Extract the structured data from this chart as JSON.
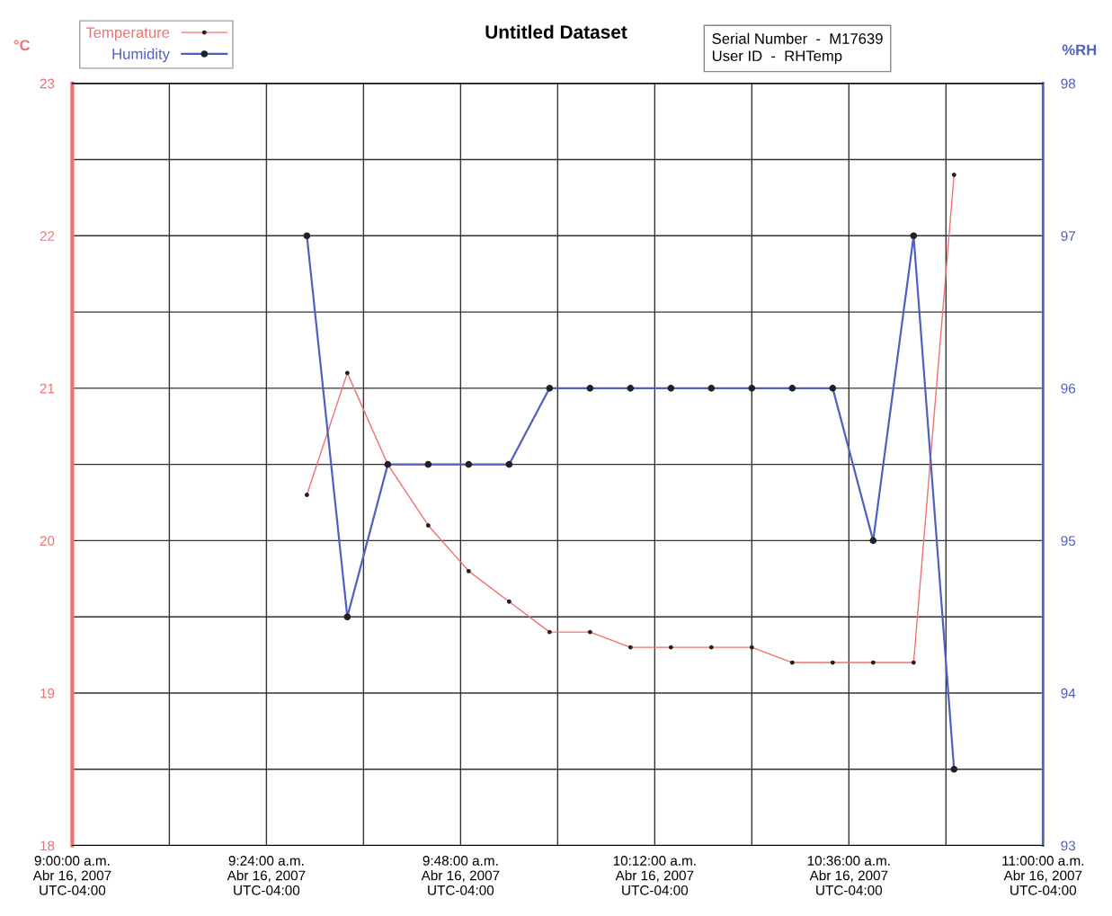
{
  "chart_data": {
    "type": "line",
    "title": "Untitled Dataset",
    "ylabel": "°C",
    "y2label": "%RH",
    "annotations": [
      "Serial Number  -  M17639",
      "User ID  -  RHTemp"
    ],
    "x": [
      "2007-04-16T09:29",
      "2007-04-16T09:34",
      "2007-04-16T09:39",
      "2007-04-16T09:44",
      "2007-04-16T09:49",
      "2007-04-16T09:54",
      "2007-04-16T09:59",
      "2007-04-16T10:04",
      "2007-04-16T10:09",
      "2007-04-16T10:14",
      "2007-04-16T10:19",
      "2007-04-16T10:24",
      "2007-04-16T10:29",
      "2007-04-16T10:34",
      "2007-04-16T10:39",
      "2007-04-16T10:44",
      "2007-04-16T10:49"
    ],
    "series": [
      {
        "name": "Temperature",
        "color": "#f07070",
        "values": [
          20.3,
          21.1,
          20.5,
          20.1,
          19.8,
          19.6,
          19.4,
          19.4,
          19.3,
          19.3,
          19.3,
          19.3,
          19.2,
          19.2,
          19.2,
          19.2,
          22.4
        ]
      },
      {
        "name": "Humidity",
        "color": "#5060c0",
        "axis": "y2",
        "values": [
          97.0,
          94.5,
          95.5,
          95.5,
          95.5,
          95.5,
          96.0,
          96.0,
          96.0,
          96.0,
          96.0,
          96.0,
          96.0,
          96.0,
          95.0,
          97.0,
          93.5
        ]
      }
    ],
    "xlim": [
      "2007-04-16T09:00",
      "2007-04-16T11:00"
    ],
    "xticks": [
      {
        "value": "2007-04-16T09:00",
        "label": "9:00:00 a.m.\nAbr 16, 2007\nUTC-04:00"
      },
      {
        "value": "2007-04-16T09:12",
        "label": null
      },
      {
        "value": "2007-04-16T09:24",
        "label": "9:24:00 a.m.\nAbr 16, 2007\nUTC-04:00"
      },
      {
        "value": "2007-04-16T09:36",
        "label": null
      },
      {
        "value": "2007-04-16T09:48",
        "label": "9:48:00 a.m.\nAbr 16, 2007\nUTC-04:00"
      },
      {
        "value": "2007-04-16T10:00",
        "label": null
      },
      {
        "value": "2007-04-16T10:12",
        "label": "10:12:00 a.m.\nAbr 16, 2007\nUTC-04:00"
      },
      {
        "value": "2007-04-16T10:24",
        "label": null
      },
      {
        "value": "2007-04-16T10:36",
        "label": "10:36:00 a.m.\nAbr 16, 2007\nUTC-04:00"
      },
      {
        "value": "2007-04-16T10:48",
        "label": null
      },
      {
        "value": "2007-04-16T11:00",
        "label": "11:00:00 a.m.\nAbr 16, 2007\nUTC-04:00"
      }
    ],
    "ylim": [
      18,
      23
    ],
    "yticks": [
      18,
      {
        "value": 18.5,
        "label": null
      },
      19,
      {
        "value": 19.5,
        "label": null
      },
      20,
      {
        "value": 20.5,
        "label": null
      },
      21,
      {
        "value": 21.5,
        "label": null
      },
      22,
      {
        "value": 22.5,
        "label": null
      },
      23
    ],
    "y2lim": [
      93,
      98
    ],
    "y2ticks": [
      93,
      94,
      95,
      96,
      97,
      98
    ],
    "grid": true,
    "legend": "top left",
    "marker": "circle",
    "line_style": "solid"
  }
}
